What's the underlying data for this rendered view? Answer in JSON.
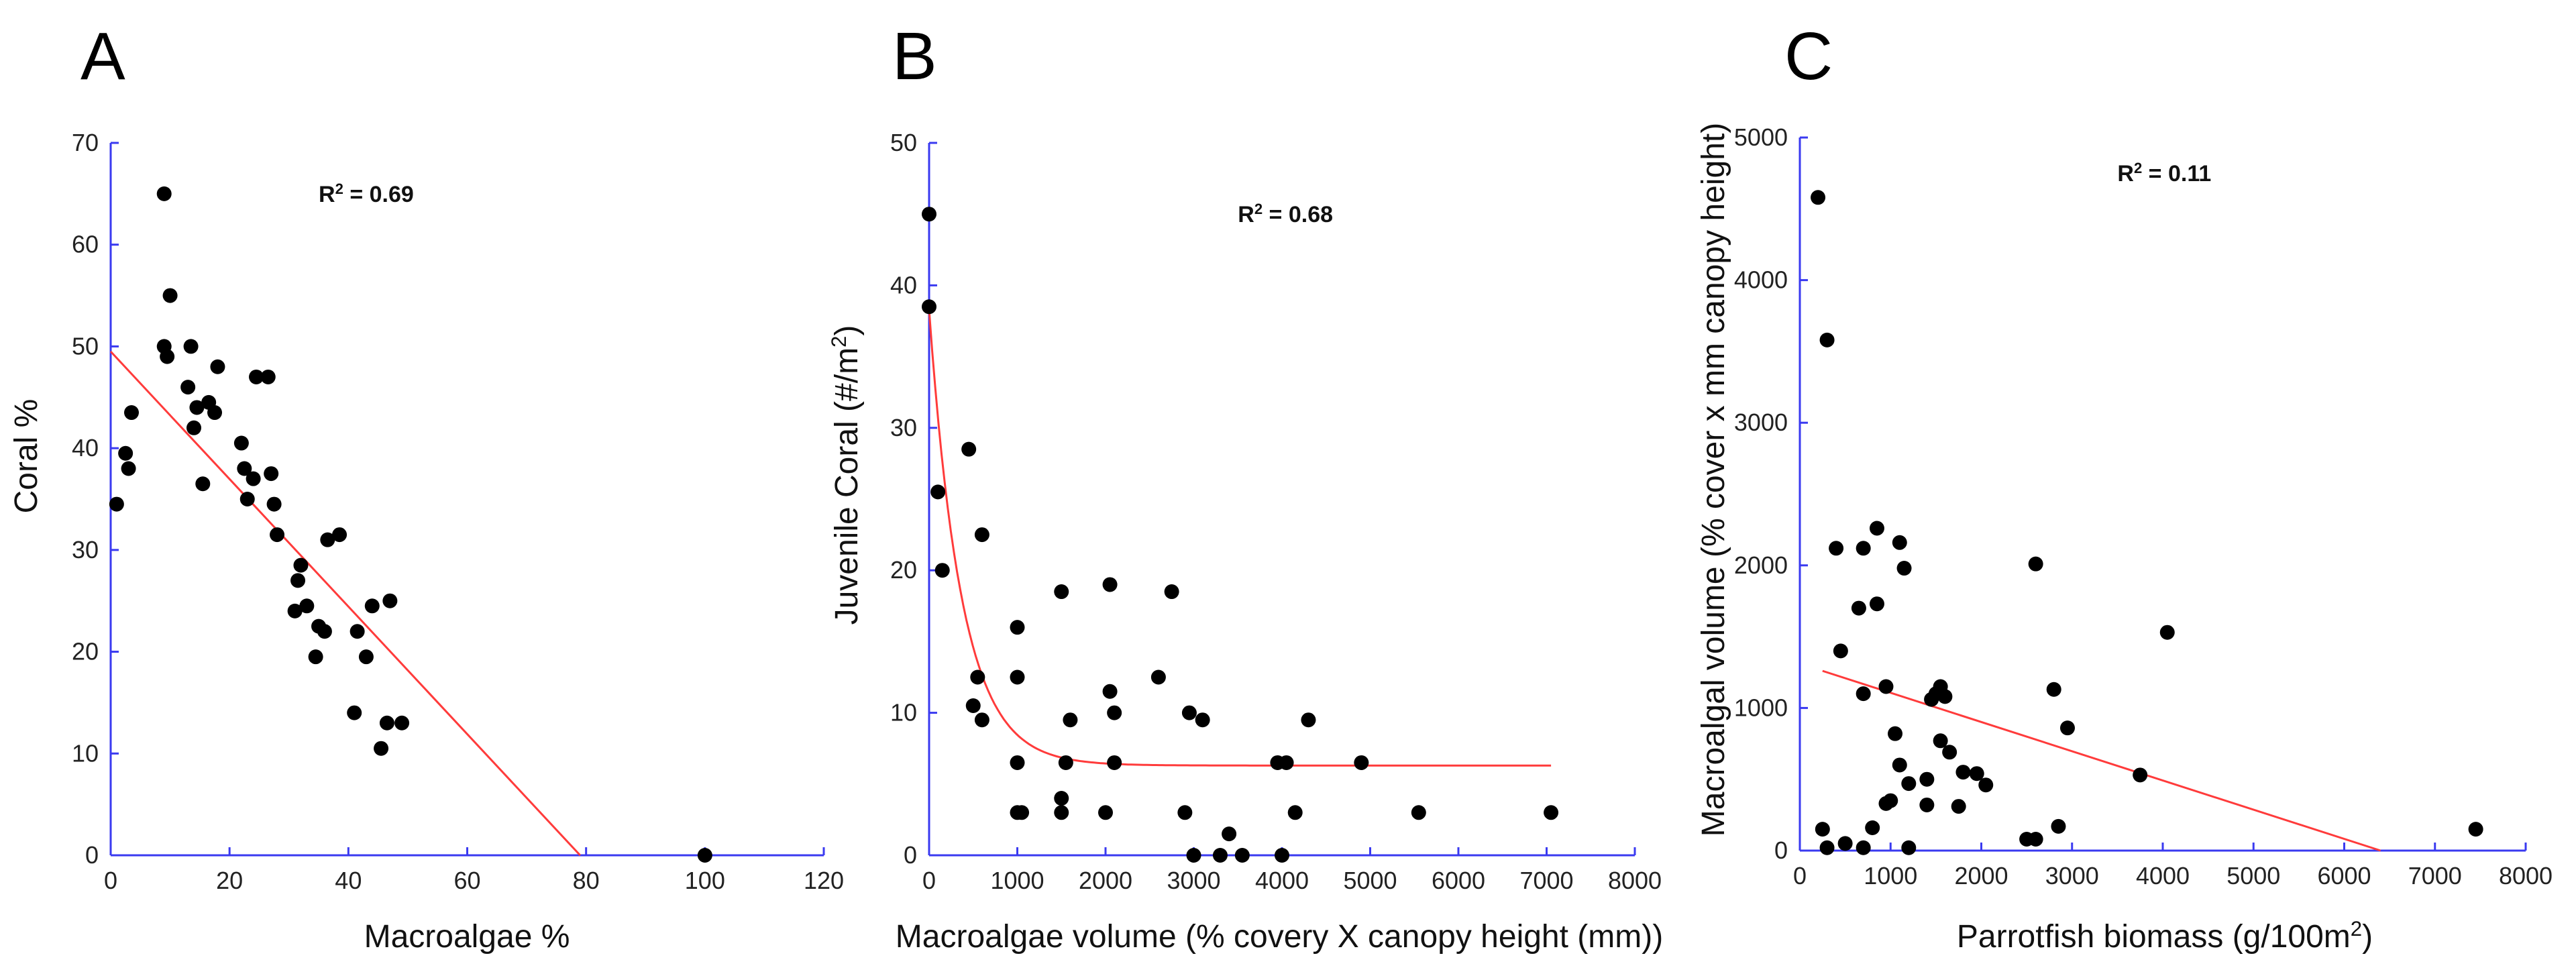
{
  "chart_data": [
    {
      "panel": "A",
      "type": "scatter",
      "xlabel": "Macroalgae %",
      "ylabel": "Coral %",
      "xlim": [
        0,
        120
      ],
      "ylim": [
        0,
        70
      ],
      "xticks": [
        0,
        20,
        40,
        60,
        80,
        100,
        120
      ],
      "yticks": [
        0,
        10,
        20,
        30,
        40,
        50,
        60,
        70
      ],
      "r2_label": "R² = 0.69",
      "r2_pos": [
        35,
        65
      ],
      "fit": {
        "kind": "linear",
        "points": [
          [
            0,
            49.5
          ],
          [
            79,
            0
          ]
        ]
      },
      "points": [
        [
          1,
          34.5
        ],
        [
          2.5,
          39.5
        ],
        [
          3,
          38
        ],
        [
          3.5,
          43.5
        ],
        [
          9,
          65
        ],
        [
          9,
          50
        ],
        [
          9.5,
          49
        ],
        [
          10,
          55
        ],
        [
          13,
          46
        ],
        [
          13.5,
          50
        ],
        [
          14,
          42
        ],
        [
          14.5,
          44
        ],
        [
          15.5,
          36.5
        ],
        [
          16.5,
          44.5
        ],
        [
          17.5,
          43.5
        ],
        [
          18,
          48
        ],
        [
          22,
          40.5
        ],
        [
          22.5,
          38
        ],
        [
          23,
          35
        ],
        [
          24,
          37
        ],
        [
          24.5,
          47
        ],
        [
          26.5,
          47
        ],
        [
          27,
          37.5
        ],
        [
          27.5,
          34.5
        ],
        [
          28,
          31.5
        ],
        [
          31,
          24
        ],
        [
          31.5,
          27
        ],
        [
          32,
          28.5
        ],
        [
          33,
          24.5
        ],
        [
          34.5,
          19.5
        ],
        [
          35,
          22.5
        ],
        [
          36,
          22
        ],
        [
          36.5,
          31
        ],
        [
          38.5,
          31.5
        ],
        [
          41,
          14
        ],
        [
          41.5,
          22
        ],
        [
          43,
          19.5
        ],
        [
          44,
          24.5
        ],
        [
          45.5,
          10.5
        ],
        [
          46.5,
          13
        ],
        [
          47,
          25
        ],
        [
          49,
          13
        ],
        [
          100,
          0
        ]
      ]
    },
    {
      "panel": "B",
      "type": "scatter",
      "xlabel": "Macroalgae volume (% covery X canopy height (mm))",
      "ylabel": "Juvenile Coral (#/m²)",
      "xlim": [
        0,
        8000
      ],
      "ylim": [
        0,
        50
      ],
      "xticks": [
        0,
        1000,
        2000,
        3000,
        4000,
        5000,
        6000,
        7000,
        8000
      ],
      "yticks": [
        0,
        10,
        20,
        30,
        40,
        50
      ],
      "r2_label": "R² = 0.68",
      "r2_pos": [
        3500,
        45
      ],
      "fit": {
        "kind": "exponential_decay",
        "a": 32,
        "k": 0.0027,
        "c": 6.3,
        "x_range": [
          0,
          7050
        ]
      },
      "points": [
        [
          0,
          45
        ],
        [
          0,
          38.5
        ],
        [
          100,
          25.5
        ],
        [
          150,
          20
        ],
        [
          450,
          28.5
        ],
        [
          500,
          10.5
        ],
        [
          550,
          12.5
        ],
        [
          600,
          9.5
        ],
        [
          600,
          22.5
        ],
        [
          1000,
          16
        ],
        [
          1000,
          12.5
        ],
        [
          1000,
          6.5
        ],
        [
          1000,
          3
        ],
        [
          1050,
          3
        ],
        [
          1500,
          18.5
        ],
        [
          1500,
          4
        ],
        [
          1500,
          3
        ],
        [
          1550,
          6.5
        ],
        [
          1600,
          9.5
        ],
        [
          2000,
          3
        ],
        [
          2050,
          19
        ],
        [
          2050,
          11.5
        ],
        [
          2100,
          10
        ],
        [
          2100,
          6.5
        ],
        [
          2600,
          12.5
        ],
        [
          2750,
          18.5
        ],
        [
          2900,
          3
        ],
        [
          2950,
          10
        ],
        [
          3000,
          0
        ],
        [
          3100,
          9.5
        ],
        [
          3300,
          0
        ],
        [
          3400,
          1.5
        ],
        [
          3550,
          0
        ],
        [
          3950,
          6.5
        ],
        [
          4000,
          0
        ],
        [
          4050,
          6.5
        ],
        [
          4150,
          3
        ],
        [
          4300,
          9.5
        ],
        [
          4900,
          6.5
        ],
        [
          5550,
          3
        ],
        [
          7050,
          3
        ]
      ]
    },
    {
      "panel": "C",
      "type": "scatter",
      "xlabel": "Parrotfish biomass (g/100m²)",
      "ylabel": "Macroalgal volume (% cover x mm canopy height)",
      "xlim": [
        0,
        8000
      ],
      "ylim": [
        0,
        5000
      ],
      "xticks": [
        0,
        1000,
        2000,
        3000,
        4000,
        5000,
        6000,
        7000,
        8000
      ],
      "yticks": [
        0,
        1000,
        2000,
        3000,
        4000,
        5000
      ],
      "r2_label": "R² = 0.11",
      "r2_pos": [
        3500,
        4750
      ],
      "fit": {
        "kind": "linear",
        "points": [
          [
            250,
            1260
          ],
          [
            6400,
            0
          ]
        ]
      },
      "points": [
        [
          200,
          4580
        ],
        [
          300,
          3580
        ],
        [
          400,
          2120
        ],
        [
          450,
          1400
        ],
        [
          700,
          2120
        ],
        [
          850,
          2260
        ],
        [
          650,
          1700
        ],
        [
          850,
          1730
        ],
        [
          1100,
          2160
        ],
        [
          1150,
          1980
        ],
        [
          950,
          1150
        ],
        [
          700,
          1100
        ],
        [
          250,
          150
        ],
        [
          300,
          20
        ],
        [
          500,
          50
        ],
        [
          700,
          20
        ],
        [
          800,
          160
        ],
        [
          950,
          330
        ],
        [
          1000,
          350
        ],
        [
          1050,
          820
        ],
        [
          1100,
          600
        ],
        [
          1200,
          20
        ],
        [
          1200,
          470
        ],
        [
          1400,
          320
        ],
        [
          1400,
          500
        ],
        [
          1450,
          1060
        ],
        [
          1500,
          1100
        ],
        [
          1550,
          1150
        ],
        [
          1550,
          770
        ],
        [
          1600,
          1080
        ],
        [
          1650,
          690
        ],
        [
          1750,
          310
        ],
        [
          1800,
          550
        ],
        [
          1950,
          540
        ],
        [
          2050,
          460
        ],
        [
          2500,
          80
        ],
        [
          2600,
          80
        ],
        [
          2600,
          2010
        ],
        [
          2800,
          1130
        ],
        [
          2850,
          170
        ],
        [
          2950,
          860
        ],
        [
          3750,
          530
        ],
        [
          4050,
          1530
        ],
        [
          7450,
          150
        ]
      ]
    }
  ],
  "panel_layouts": [
    "A",
    "B",
    "C"
  ]
}
